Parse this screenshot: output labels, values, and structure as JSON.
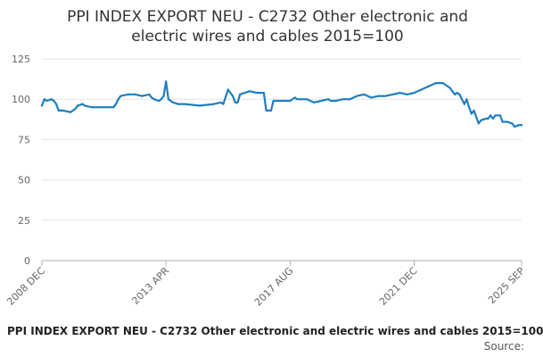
{
  "chart_data": {
    "type": "line",
    "title_lines": [
      "PPI INDEX EXPORT NEU - C2732 Other electronic and",
      "electric wires and cables 2015=100"
    ],
    "xlabel": "",
    "ylabel": "",
    "x_range": [
      "2008-12",
      "2025-09"
    ],
    "ylim": [
      0,
      125
    ],
    "y_ticks": [
      "0",
      "25",
      "50",
      "75",
      "100",
      "125"
    ],
    "x_ticks": [
      {
        "label": "2008 DEC",
        "date": "2008-12"
      },
      {
        "label": "2013 APR",
        "date": "2013-04"
      },
      {
        "label": "2017 AUG",
        "date": "2017-08"
      },
      {
        "label": "2021 DEC",
        "date": "2021-12"
      },
      {
        "label": "2025 SEP",
        "date": "2025-09"
      }
    ],
    "grid": "horizontal",
    "line_color": "#1f7fc0",
    "series": [
      {
        "x": [
          "2008-12",
          "2009-01",
          "2009-02",
          "2009-04",
          "2009-05",
          "2009-06",
          "2009-07",
          "2009-08",
          "2009-09",
          "2009-12",
          "2010-02",
          "2010-03",
          "2010-05",
          "2010-06",
          "2010-09",
          "2010-12",
          "2011-03",
          "2011-06",
          "2011-07",
          "2011-08",
          "2011-09",
          "2011-12",
          "2012-03",
          "2012-06",
          "2012-09",
          "2012-10",
          "2012-11",
          "2013-01",
          "2013-02",
          "2013-03",
          "2013-04",
          "2013-05",
          "2013-07",
          "2013-09",
          "2013-12",
          "2014-06",
          "2014-12",
          "2015-03",
          "2015-04",
          "2015-06",
          "2015-08",
          "2015-09",
          "2015-10",
          "2015-11",
          "2016-01",
          "2016-03",
          "2016-06",
          "2016-09",
          "2016-10",
          "2016-11",
          "2016-12",
          "2017-01",
          "2017-02",
          "2017-03",
          "2017-05",
          "2017-08",
          "2017-10",
          "2017-11",
          "2018-01",
          "2018-03",
          "2018-06",
          "2018-09",
          "2018-12",
          "2019-01",
          "2019-03",
          "2019-06",
          "2019-09",
          "2019-12",
          "2020-03",
          "2020-06",
          "2020-09",
          "2020-12",
          "2021-03",
          "2021-06",
          "2021-09",
          "2021-12",
          "2022-03",
          "2022-06",
          "2022-09",
          "2022-12",
          "2023-03",
          "2023-05",
          "2023-06",
          "2023-07",
          "2023-08",
          "2023-09",
          "2023-10",
          "2023-11",
          "2023-12",
          "2024-01",
          "2024-02",
          "2024-03",
          "2024-04",
          "2024-06",
          "2024-07",
          "2024-08",
          "2024-09",
          "2024-10",
          "2024-12",
          "2025-01",
          "2025-03",
          "2025-05",
          "2025-06",
          "2025-08",
          "2025-09"
        ],
        "y": [
          96,
          100,
          99,
          100,
          99,
          97,
          93,
          93,
          93,
          92,
          94,
          96,
          97,
          96,
          95,
          95,
          95,
          95,
          97,
          100,
          102,
          103,
          103,
          102,
          103,
          101,
          100,
          99,
          100,
          102,
          111,
          100,
          98,
          97,
          97,
          96,
          97,
          98,
          97,
          106,
          102,
          98,
          98,
          103,
          104,
          105,
          104,
          104,
          93,
          93,
          93,
          99,
          99,
          99,
          99,
          99,
          101,
          100,
          100,
          100,
          98,
          99,
          100,
          99,
          99,
          100,
          100,
          102,
          103,
          101,
          102,
          102,
          103,
          104,
          103,
          104,
          106,
          108,
          110,
          110,
          107,
          103,
          104,
          103,
          100,
          97,
          100,
          95,
          91,
          93,
          89,
          85,
          87,
          88,
          88,
          90,
          88,
          90,
          90,
          86,
          86,
          85,
          83,
          84,
          84
        ]
      }
    ]
  },
  "footer": {
    "caption": "PPI INDEX EXPORT NEU - C2732 Other electronic and electric wires and cables 2015=100",
    "source_label": "Source:"
  }
}
